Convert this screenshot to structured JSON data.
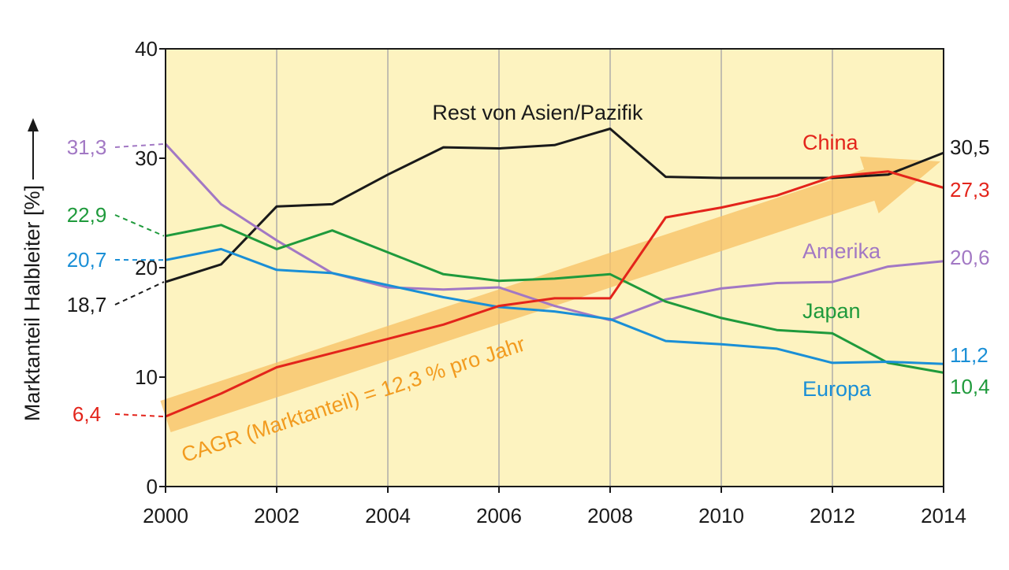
{
  "chart_data": {
    "type": "line",
    "ylabel": "Marktanteil Halbleiter [%]",
    "ylim": [
      0,
      40
    ],
    "yticks": [
      "0",
      "10",
      "20",
      "30",
      "40"
    ],
    "xlim": [
      2000,
      2014
    ],
    "xticks": [
      "2000",
      "2002",
      "2004",
      "2006",
      "2008",
      "2010",
      "2012",
      "2014"
    ],
    "x": [
      2000,
      2001,
      2002,
      2003,
      2004,
      2005,
      2006,
      2007,
      2008,
      2009,
      2010,
      2011,
      2012,
      2013,
      2014
    ],
    "grid": "vertical",
    "background": "#fdf3c0",
    "series": [
      {
        "name": "Rest von Asien/Pazifik",
        "color": "#1a1a1a",
        "values": [
          18.7,
          20.3,
          25.6,
          25.8,
          28.5,
          31.0,
          30.9,
          31.2,
          32.7,
          28.3,
          28.2,
          28.2,
          28.2,
          28.5,
          30.5
        ],
        "start_label": "18,7",
        "end_label": "30,5"
      },
      {
        "name": "China",
        "color": "#e3241b",
        "values": [
          6.4,
          8.5,
          10.9,
          12.2,
          13.5,
          14.8,
          16.5,
          17.2,
          17.2,
          24.6,
          25.5,
          26.6,
          28.3,
          28.8,
          27.3
        ],
        "start_label": "6,4",
        "end_label": "27,3"
      },
      {
        "name": "Amerika",
        "color": "#a278c4",
        "values": [
          31.3,
          25.8,
          22.5,
          19.5,
          18.2,
          18.0,
          18.2,
          16.5,
          15.2,
          17.1,
          18.1,
          18.6,
          18.7,
          20.1,
          20.6
        ],
        "start_label": "31,3",
        "end_label": "20,6"
      },
      {
        "name": "Japan",
        "color": "#1f9a3c",
        "values": [
          22.9,
          23.9,
          21.7,
          23.4,
          21.4,
          19.4,
          18.8,
          19.0,
          19.4,
          16.9,
          15.4,
          14.3,
          14.0,
          11.3,
          10.4
        ],
        "start_label": "22,9",
        "end_label": "10,4"
      },
      {
        "name": "Europa",
        "color": "#1a8fd6",
        "values": [
          20.7,
          21.7,
          19.8,
          19.5,
          18.4,
          17.3,
          16.4,
          16.0,
          15.3,
          13.3,
          13.0,
          12.6,
          11.3,
          11.4,
          11.2
        ],
        "start_label": "20,7",
        "end_label": "11,2"
      }
    ],
    "trend": {
      "label": "CAGR (Marktanteil) = 12,3 % pro Jahr",
      "color": "#f7c266",
      "label_color": "#f29b1f",
      "from": [
        2000,
        6.4
      ],
      "to": [
        2014,
        29.7
      ]
    }
  }
}
